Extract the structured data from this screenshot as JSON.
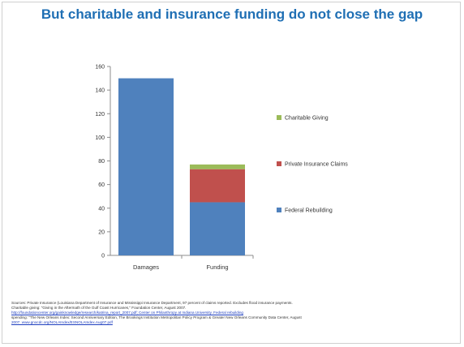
{
  "title": "But charitable and insurance funding do not close the gap",
  "chart_data": {
    "type": "bar",
    "stacked": true,
    "categories": [
      "Damages",
      "Funding"
    ],
    "series": [
      {
        "name": "Federal Rebuilding",
        "color": "#4f81bd",
        "values": [
          150,
          45
        ]
      },
      {
        "name": "Private Insurance Claims",
        "color": "#c0504d",
        "values": [
          0,
          28
        ]
      },
      {
        "name": "Charitable Giving",
        "color": "#9bbb59",
        "values": [
          0,
          4
        ]
      }
    ],
    "ylim": [
      0,
      160
    ],
    "yticks": [
      0,
      20,
      40,
      60,
      80,
      100,
      120,
      140,
      160
    ],
    "grid": false,
    "legend": "right",
    "legend_order": [
      "Charitable Giving",
      "Private Insurance Claims",
      "Federal Rebuilding"
    ]
  },
  "sources": {
    "line1": "Sources: Private Insurance (Louisiana Department of Insurance and Mississippi Insurance Department, 97 percent of claims reported. Excludes flood insurance payments.",
    "line2": "Charitable giving: \"Giving in the Aftermath of the Gulf Coast Hurricanes,\" Foundation Center, August 2007.",
    "line3": "http://foundationcenter.org/gainknowledge/research/katrina_report_2007.pdf; Center on Philanthropy at Indiana University. Federal rebuilding",
    "line4": "spending: \"The New Orleans Index: Second Anniversary Edition, The Brookings Institution Metropolitan Policy Program & Greater New Orleans Community Data Center, August",
    "line5": "2007. www.gnocdc.org/NOLAIndex/ESNOLAIndex.Aug07.pdf"
  }
}
